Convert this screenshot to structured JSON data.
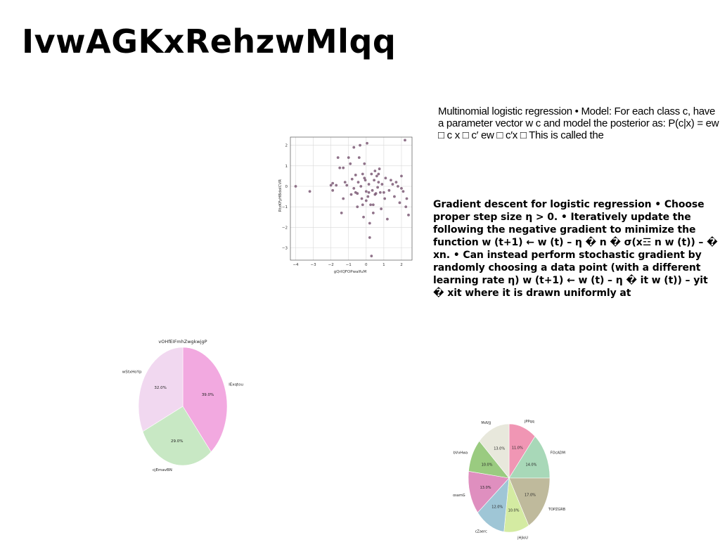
{
  "page": {
    "title": "IvwAGKxRehzwMlqq",
    "paragraph1": "Multinomial logistic regression • Model: For each class c, have a parameter vector w c and model the posterior as: P(c|x) = ew □ c x □ c′ ew □ c′x □ This is called the",
    "paragraph2": "Gradient descent for logistic regression • Choose proper step size η > 0. • Iteratively update the following the negative gradient to minimize the function w (t+1) ← w (t) – η � n � σ(x☲ n w (t)) – � xn. • Can instead perform stochastic gradient by randomly choosing a data point (with a different learning rate η) w (t+1) ← w (t) – η � it w (t)) – yit � xit where it is drawn uniformly at"
  },
  "chart_data": [
    {
      "type": "scatter",
      "title": "",
      "xlabel": "gQrIQFOPwaIfuM",
      "ylabel": "RtzKFyHBdoICVR",
      "xlim": [
        -4.3,
        2.6
      ],
      "ylim": [
        -3.6,
        2.4
      ],
      "xticks": [
        -4,
        -3,
        -2,
        -1,
        0,
        1,
        2
      ],
      "yticks": [
        -3,
        -2,
        -1,
        0,
        1,
        2
      ],
      "grid": true,
      "color": "#7d5a75",
      "points": [
        [
          -4.0,
          0.0
        ],
        [
          -3.2,
          -0.25
        ],
        [
          -2.0,
          0.05
        ],
        [
          -1.9,
          0.15
        ],
        [
          -1.9,
          -0.2
        ],
        [
          -1.7,
          0.05
        ],
        [
          -1.6,
          1.4
        ],
        [
          -1.5,
          0.9
        ],
        [
          -1.4,
          -1.3
        ],
        [
          -1.3,
          0.9
        ],
        [
          -1.2,
          0.2
        ],
        [
          -1.1,
          0.05
        ],
        [
          -1.0,
          1.4
        ],
        [
          -0.9,
          1.1
        ],
        [
          -0.85,
          -0.4
        ],
        [
          -0.8,
          0.35
        ],
        [
          -0.7,
          -0.1
        ],
        [
          -0.7,
          1.9
        ],
        [
          -0.6,
          0.55
        ],
        [
          -0.5,
          -0.35
        ],
        [
          -0.5,
          -1.0
        ],
        [
          -0.45,
          0.2
        ],
        [
          -0.4,
          1.4
        ],
        [
          -0.35,
          2.0
        ],
        [
          -0.3,
          0.0
        ],
        [
          -0.25,
          -0.6
        ],
        [
          -0.2,
          0.6
        ],
        [
          -0.15,
          -1.5
        ],
        [
          -0.1,
          1.1
        ],
        [
          -0.05,
          0.3
        ],
        [
          0.0,
          -0.25
        ],
        [
          0.05,
          2.1
        ],
        [
          0.1,
          -0.5
        ],
        [
          0.15,
          0.1
        ],
        [
          0.2,
          -1.8
        ],
        [
          0.25,
          -0.9
        ],
        [
          0.3,
          0.6
        ],
        [
          0.35,
          -0.2
        ],
        [
          0.4,
          -1.3
        ],
        [
          0.45,
          0.3
        ],
        [
          0.5,
          0.75
        ],
        [
          0.55,
          -0.35
        ],
        [
          0.6,
          0.5
        ],
        [
          0.65,
          -0.05
        ],
        [
          0.7,
          0.2
        ],
        [
          0.75,
          0.85
        ],
        [
          0.8,
          -0.3
        ],
        [
          0.85,
          -1.1
        ],
        [
          0.9,
          0.1
        ],
        [
          1.0,
          -0.3
        ],
        [
          1.05,
          -0.6
        ],
        [
          1.1,
          0.4
        ],
        [
          1.2,
          -1.6
        ],
        [
          1.3,
          -0.2
        ],
        [
          1.5,
          0.1
        ],
        [
          1.6,
          -0.5
        ],
        [
          1.8,
          0.0
        ],
        [
          1.9,
          -0.8
        ],
        [
          2.0,
          0.5
        ],
        [
          2.1,
          -0.25
        ],
        [
          2.2,
          2.25
        ],
        [
          2.25,
          -1.0
        ],
        [
          2.3,
          -0.6
        ],
        [
          2.4,
          -1.4
        ],
        [
          0.2,
          -2.5
        ],
        [
          0.3,
          -3.4
        ],
        [
          -0.2,
          -0.9
        ],
        [
          0.0,
          -0.7
        ],
        [
          0.4,
          -0.9
        ],
        [
          -0.6,
          -0.3
        ],
        [
          1.7,
          0.2
        ],
        [
          2.0,
          -0.1
        ],
        [
          -0.1,
          0.4
        ],
        [
          0.7,
          0.6
        ],
        [
          1.4,
          0.3
        ],
        [
          -1.3,
          -0.6
        ],
        [
          0.15,
          -0.3
        ],
        [
          0.5,
          -0.4
        ]
      ]
    },
    {
      "type": "pie",
      "title": "vOHfEIFmhZwgkwjgP",
      "slices": [
        {
          "label": "lExqtou",
          "value": 39.0,
          "pct": "39.0%",
          "color": "#f2a9e0"
        },
        {
          "label": "cjEmavBN",
          "value": 29.0,
          "pct": "29.0%",
          "color": "#c8e8c4"
        },
        {
          "label": "wStxHoYp",
          "value": 32.0,
          "pct": "32.0%",
          "color": "#f1d8f0"
        }
      ]
    },
    {
      "type": "pie",
      "title": "",
      "slices": [
        {
          "label": "jPPqq",
          "value": 11.0,
          "pct": "11.0%",
          "color": "#f096b4"
        },
        {
          "label": "FOcADM",
          "value": 14.0,
          "pct": "14.0%",
          "color": "#a8d8b8"
        },
        {
          "label": "TOPZGRB",
          "value": 17.0,
          "pct": "17.0%",
          "color": "#bfba9c"
        },
        {
          "label": "jHjIoU",
          "value": 10.0,
          "pct": "10.0%",
          "color": "#d4eba2"
        },
        {
          "label": "cZaerc",
          "value": 12.0,
          "pct": "12.0%",
          "color": "#9fc6d6"
        },
        {
          "label": "osamG",
          "value": 13.0,
          "pct": "13.0%",
          "color": "#df8fbf"
        },
        {
          "label": "bVvHwa",
          "value": 10.0,
          "pct": "10.0%",
          "color": "#9acb80"
        },
        {
          "label": "MdVJj",
          "value": 13.0,
          "pct": "13.0%",
          "color": "#e8e8dc"
        }
      ]
    }
  ]
}
